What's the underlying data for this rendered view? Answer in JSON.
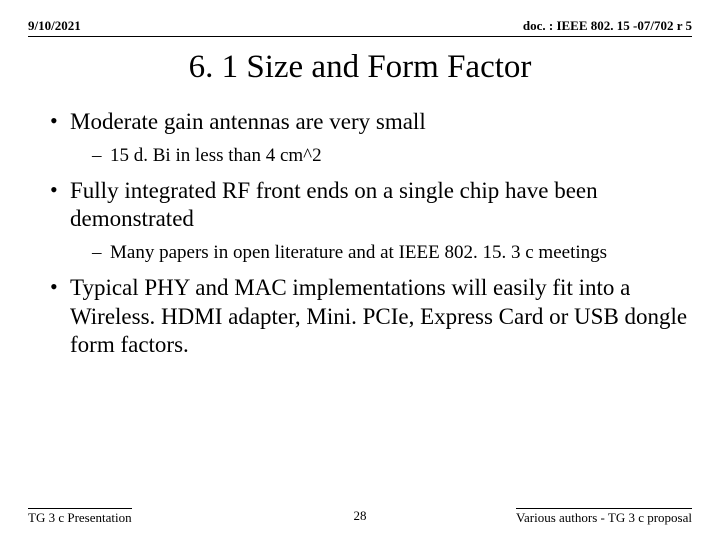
{
  "header": {
    "date": "9/10/2021",
    "doc": "doc. : IEEE 802. 15 -07/702 r 5"
  },
  "title": "6. 1 Size and Form Factor",
  "bullets": [
    {
      "text": "Moderate gain antennas are very small",
      "sub": [
        "15 d. Bi in less than 4 cm^2"
      ]
    },
    {
      "text": "Fully integrated RF front ends on a single chip have been demonstrated",
      "sub": [
        "Many papers in open literature and at IEEE 802. 15. 3 c meetings"
      ]
    },
    {
      "text": "Typical PHY and MAC implementations will easily fit into a Wireless. HDMI adapter, Mini. PCIe, Express Card or USB dongle form factors.",
      "sub": []
    }
  ],
  "footer": {
    "left": "TG 3 c Presentation",
    "page": "28",
    "right": "Various authors - TG 3 c proposal"
  }
}
